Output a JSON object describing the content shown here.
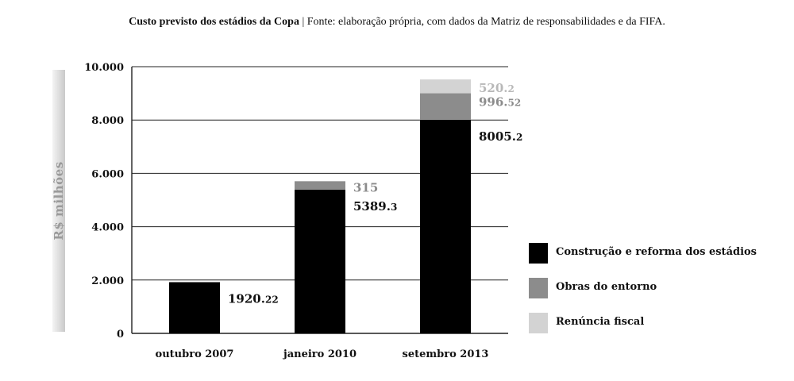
{
  "header": {
    "title_bold": "Custo previsto dos estádios da Copa",
    "separator": " | ",
    "title_rest": "Fonte: elaboração própria, com dados da Matriz de responsabilidades e da FIFA."
  },
  "chart_data": {
    "type": "bar",
    "stacked": true,
    "title": "Custo previsto dos estádios da Copa",
    "source": "Fonte: elaboração própria, com dados da Matriz de responsabilidades e da FIFA.",
    "ylabel": "R$ milhões",
    "xlabel": "",
    "ylim": [
      0,
      10000
    ],
    "yticks": [
      0,
      2000,
      4000,
      6000,
      8000,
      10000
    ],
    "ytick_labels": [
      "0",
      "2.000",
      "4.000",
      "6.000",
      "8.000",
      "10.000"
    ],
    "grid": true,
    "legend_position": "right",
    "categories": [
      "outubro 2007",
      "janeiro 2010",
      "setembro 2013"
    ],
    "series": [
      {
        "name": "Construção e reforma dos estádios",
        "color": "#000000",
        "values": [
          1920.22,
          5389.3,
          8005.2
        ],
        "labels": [
          "1920.22",
          "5389.3",
          "8005.2"
        ]
      },
      {
        "name": "Obras do entorno",
        "color": "#8c8c8c",
        "values": [
          0,
          315,
          996.52
        ],
        "labels": [
          "",
          "315",
          "996.52"
        ]
      },
      {
        "name": "Renúncia fiscal",
        "color": "#d3d3d3",
        "values": [
          0,
          0,
          520.2
        ],
        "labels": [
          "",
          "",
          "520.2"
        ]
      }
    ]
  }
}
